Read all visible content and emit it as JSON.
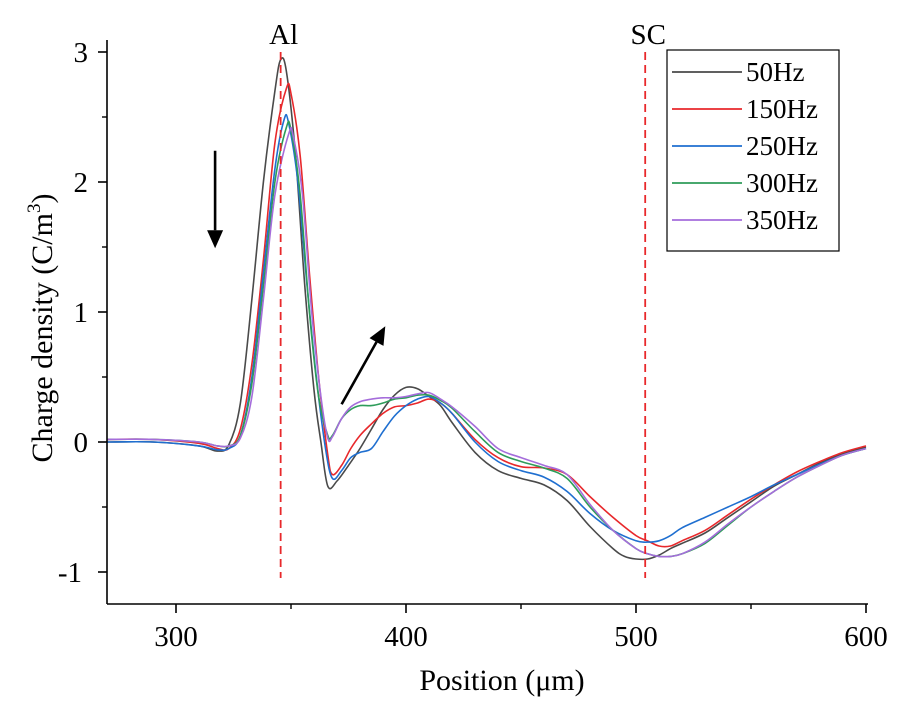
{
  "chart_data": {
    "type": "line",
    "title": "",
    "xlabel": "Position (μm)",
    "ylabel_main": "Charge density (C/m",
    "ylabel_sup": "3",
    "ylabel_end": ")",
    "xlim": [
      270,
      600
    ],
    "ylim": [
      -1.25,
      3
    ],
    "xticks": [
      300,
      400,
      500,
      600
    ],
    "xtick_labels": [
      "300",
      "400",
      "500",
      "600"
    ],
    "xminor": [
      350,
      450,
      550
    ],
    "yticks": [
      -1,
      0,
      1,
      2,
      3
    ],
    "ytick_labels": [
      "-1",
      "0",
      "1",
      "2",
      "3"
    ],
    "yminor": [
      -0.5,
      0.5,
      1.5,
      2.5
    ],
    "grid": false,
    "legend_position": "top-right",
    "annotations": [
      {
        "text": "Al",
        "x": 345.5,
        "line_style": "dashed",
        "color": "#e8282b"
      },
      {
        "text": "SC",
        "x": 504,
        "line_style": "dashed",
        "color": "#e8282b"
      }
    ],
    "arrows": [
      {
        "meaning": "peak decreases with frequency",
        "from": [
          317,
          2.24
        ],
        "to": [
          317,
          1.49
        ]
      },
      {
        "meaning": "valley rises with frequency",
        "from": [
          372,
          0.29
        ],
        "to": [
          391,
          0.89
        ]
      }
    ],
    "series": [
      {
        "name": "50Hz",
        "color": "#4a4a4a",
        "x": [
          270,
          290,
          310,
          318,
          323,
          328,
          333,
          338,
          343,
          345.5,
          348,
          352,
          356,
          360,
          363,
          366,
          370,
          375,
          380,
          385,
          390,
          395,
          400,
          405,
          410,
          415,
          420,
          430,
          440,
          450,
          460,
          470,
          480,
          490,
          495,
          500,
          505,
          510,
          515,
          520,
          530,
          540,
          550,
          560,
          570,
          580,
          590,
          600
        ],
        "y": [
          0.0,
          0.0,
          -0.03,
          -0.07,
          -0.02,
          0.3,
          1.1,
          2.0,
          2.7,
          2.94,
          2.85,
          2.2,
          1.2,
          0.4,
          0.0,
          -0.34,
          -0.3,
          -0.18,
          -0.05,
          0.1,
          0.25,
          0.36,
          0.42,
          0.41,
          0.35,
          0.28,
          0.15,
          -0.08,
          -0.22,
          -0.28,
          -0.33,
          -0.45,
          -0.65,
          -0.82,
          -0.88,
          -0.9,
          -0.9,
          -0.87,
          -0.82,
          -0.78,
          -0.7,
          -0.58,
          -0.46,
          -0.34,
          -0.25,
          -0.16,
          -0.09,
          -0.04
        ]
      },
      {
        "name": "150Hz",
        "color": "#e8282b",
        "x": [
          270,
          290,
          310,
          318,
          323,
          328,
          333,
          338,
          343,
          348,
          350,
          354,
          358,
          362,
          366,
          368,
          372,
          376,
          380,
          385,
          390,
          395,
          400,
          405,
          410,
          415,
          420,
          430,
          440,
          450,
          460,
          470,
          480,
          490,
          500,
          505,
          510,
          515,
          520,
          530,
          540,
          550,
          560,
          570,
          580,
          590,
          600
        ],
        "y": [
          0.02,
          0.02,
          -0.01,
          -0.05,
          -0.05,
          0.1,
          0.6,
          1.4,
          2.3,
          2.72,
          2.68,
          2.2,
          1.3,
          0.5,
          -0.1,
          -0.25,
          -0.18,
          -0.05,
          0.05,
          0.14,
          0.22,
          0.27,
          0.28,
          0.3,
          0.33,
          0.3,
          0.22,
          0.02,
          -0.12,
          -0.19,
          -0.2,
          -0.25,
          -0.42,
          -0.58,
          -0.72,
          -0.76,
          -0.8,
          -0.8,
          -0.76,
          -0.68,
          -0.56,
          -0.44,
          -0.33,
          -0.23,
          -0.15,
          -0.08,
          -0.03
        ]
      },
      {
        "name": "250Hz",
        "color": "#1f6fd0",
        "x": [
          270,
          290,
          310,
          318,
          323,
          328,
          333,
          338,
          343,
          347,
          349,
          353,
          357,
          361,
          365,
          368,
          372,
          376,
          380,
          385,
          390,
          395,
          400,
          405,
          410,
          415,
          420,
          430,
          440,
          450,
          460,
          470,
          480,
          490,
          500,
          505,
          510,
          515,
          520,
          530,
          540,
          550,
          560,
          570,
          580,
          590,
          600
        ],
        "y": [
          0.0,
          0.0,
          -0.03,
          -0.06,
          -0.05,
          0.05,
          0.5,
          1.3,
          2.1,
          2.48,
          2.45,
          2.0,
          1.2,
          0.5,
          -0.05,
          -0.28,
          -0.22,
          -0.12,
          -0.08,
          -0.05,
          0.08,
          0.2,
          0.28,
          0.33,
          0.35,
          0.3,
          0.22,
          0.0,
          -0.15,
          -0.22,
          -0.27,
          -0.38,
          -0.55,
          -0.68,
          -0.76,
          -0.77,
          -0.76,
          -0.72,
          -0.66,
          -0.58,
          -0.5,
          -0.42,
          -0.33,
          -0.25,
          -0.17,
          -0.1,
          -0.05
        ]
      },
      {
        "name": "300Hz",
        "color": "#2e9c5a",
        "x": [
          270,
          290,
          310,
          318,
          323,
          328,
          333,
          338,
          343,
          348,
          350,
          354,
          358,
          362,
          366,
          368,
          372,
          376,
          380,
          385,
          390,
          395,
          400,
          405,
          410,
          415,
          420,
          430,
          440,
          450,
          460,
          470,
          480,
          490,
          500,
          505,
          510,
          515,
          520,
          530,
          540,
          550,
          560,
          570,
          580,
          590,
          600
        ],
        "y": [
          0.02,
          0.02,
          0.0,
          -0.03,
          -0.03,
          0.05,
          0.45,
          1.2,
          2.0,
          2.42,
          2.4,
          1.9,
          1.0,
          0.35,
          0.05,
          0.05,
          0.18,
          0.25,
          0.28,
          0.28,
          0.3,
          0.33,
          0.34,
          0.36,
          0.36,
          0.32,
          0.26,
          0.08,
          -0.08,
          -0.15,
          -0.2,
          -0.28,
          -0.5,
          -0.68,
          -0.82,
          -0.86,
          -0.88,
          -0.88,
          -0.86,
          -0.78,
          -0.64,
          -0.5,
          -0.38,
          -0.27,
          -0.18,
          -0.1,
          -0.05
        ]
      },
      {
        "name": "350Hz",
        "color": "#a56ddb",
        "x": [
          270,
          290,
          310,
          318,
          323,
          328,
          333,
          338,
          343,
          349,
          351,
          355,
          359,
          363,
          366,
          368,
          372,
          376,
          380,
          385,
          390,
          395,
          400,
          405,
          410,
          415,
          420,
          430,
          440,
          450,
          460,
          470,
          480,
          490,
          500,
          505,
          510,
          515,
          520,
          530,
          540,
          550,
          560,
          570,
          580,
          590,
          600
        ],
        "y": [
          0.02,
          0.02,
          0.0,
          -0.03,
          -0.03,
          0.03,
          0.35,
          1.1,
          1.9,
          2.37,
          2.35,
          1.9,
          1.0,
          0.35,
          0.03,
          0.04,
          0.18,
          0.27,
          0.31,
          0.33,
          0.34,
          0.34,
          0.35,
          0.37,
          0.38,
          0.33,
          0.27,
          0.12,
          -0.05,
          -0.12,
          -0.18,
          -0.25,
          -0.48,
          -0.68,
          -0.82,
          -0.86,
          -0.88,
          -0.88,
          -0.86,
          -0.77,
          -0.63,
          -0.5,
          -0.38,
          -0.27,
          -0.18,
          -0.1,
          -0.05
        ]
      }
    ]
  }
}
